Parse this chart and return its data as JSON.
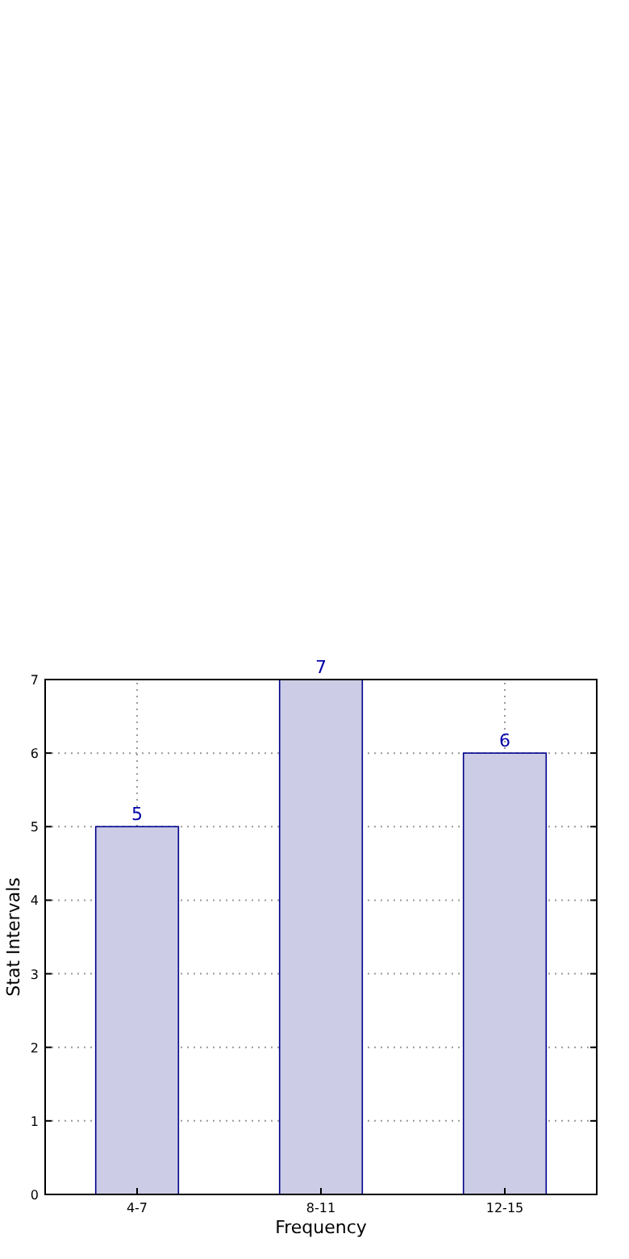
{
  "chart_data": {
    "type": "bar",
    "xlabel": "Frequency",
    "ylabel": "Stat Intervals",
    "categories": [
      "4-7",
      "8-11",
      "12-15"
    ],
    "values": [
      5,
      7,
      6
    ],
    "color": "#cccce6",
    "ylim": [
      0,
      7
    ],
    "yticks": [
      0,
      1,
      2,
      3,
      4,
      5,
      6,
      7
    ],
    "grid": true,
    "data_labels": true
  }
}
